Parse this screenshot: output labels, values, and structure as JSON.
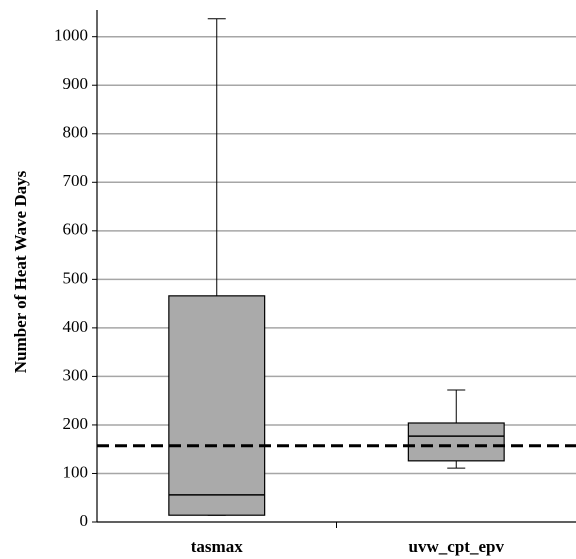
{
  "chart_data": {
    "type": "box",
    "y_label": "Number of Heat Wave Days",
    "categories": [
      "tasmax",
      "uvw_cpt_epv"
    ],
    "min": [
      14,
      111
    ],
    "q1": [
      14,
      126
    ],
    "median": [
      56,
      177
    ],
    "q3": [
      466,
      204
    ],
    "max": [
      1037,
      272
    ],
    "color": "#aaaaaa",
    "reference_line": 157,
    "ylim": [
      0,
      1055
    ],
    "yticks": [
      0,
      100,
      200,
      300,
      400,
      500,
      600,
      700,
      800,
      900,
      1000
    ],
    "grid": true
  }
}
